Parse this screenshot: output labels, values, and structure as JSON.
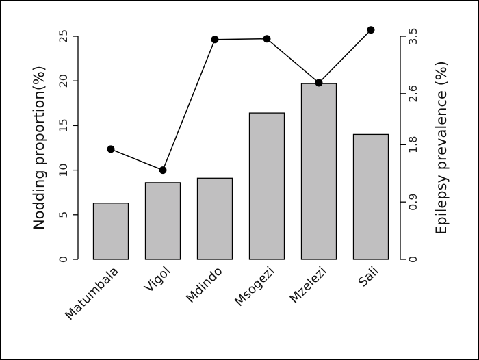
{
  "chart_data": {
    "type": "bar+line",
    "categories": [
      "Matumbala",
      "Vigol",
      "Mdindo",
      "Msogezi",
      "Mzelezi",
      "Sali"
    ],
    "bars": {
      "axis": "left",
      "values": [
        6.3,
        8.6,
        9.1,
        16.4,
        19.7,
        14.0
      ],
      "color": "#c0bfc0"
    },
    "line": {
      "axis": "right",
      "values": [
        1.73,
        1.4,
        3.45,
        3.46,
        2.77,
        3.6
      ],
      "color": "#000000"
    },
    "ylabel": "Nodding proportion(%)",
    "ylim": [
      0,
      25
    ],
    "yticks": [
      "0",
      "5",
      "10",
      "15",
      "20",
      "25"
    ],
    "y2label": "Epilepsy prevalence (%)",
    "y2lim": [
      0,
      3.5
    ],
    "y2ticks": [
      "0",
      "0.9",
      "1.8",
      "2.6",
      "3.5"
    ],
    "grid": false
  }
}
